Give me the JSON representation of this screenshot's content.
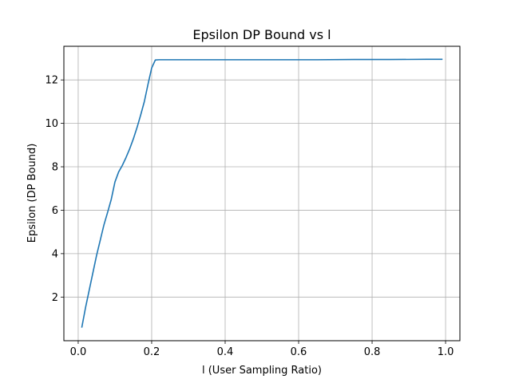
{
  "chart_data": {
    "type": "line",
    "title": "Epsilon DP Bound vs l",
    "xlabel": "l (User Sampling Ratio)",
    "ylabel": "Epsilon (DP Bound)",
    "xlim": [
      -0.039,
      1.039
    ],
    "ylim": [
      -0.01,
      13.55
    ],
    "xticks": [
      0.0,
      0.2,
      0.4,
      0.6,
      0.8,
      1.0
    ],
    "xtick_labels": [
      "0.0",
      "0.2",
      "0.4",
      "0.6",
      "0.8",
      "1.0"
    ],
    "yticks": [
      2,
      4,
      6,
      8,
      10,
      12
    ],
    "ytick_labels": [
      "2",
      "4",
      "6",
      "8",
      "10",
      "12"
    ],
    "grid": true,
    "legend": "none",
    "series": [
      {
        "color": "#1f77b4",
        "x": [
          0.01,
          0.02,
          0.03,
          0.04,
          0.05,
          0.06,
          0.07,
          0.08,
          0.09,
          0.1,
          0.11,
          0.12,
          0.13,
          0.14,
          0.15,
          0.16,
          0.17,
          0.18,
          0.19,
          0.2,
          0.21,
          0.22,
          0.23,
          0.25,
          0.28,
          0.35,
          0.45,
          0.55,
          0.65,
          0.75,
          0.85,
          0.95,
          0.99
        ],
        "y": [
          0.62,
          1.52,
          2.32,
          3.12,
          3.92,
          4.62,
          5.32,
          5.9,
          6.5,
          7.3,
          7.76,
          8.06,
          8.42,
          8.82,
          9.28,
          9.8,
          10.38,
          11.0,
          11.8,
          12.55,
          12.92,
          12.93,
          12.93,
          12.93,
          12.93,
          12.93,
          12.93,
          12.93,
          12.93,
          12.94,
          12.94,
          12.95,
          12.95
        ]
      }
    ]
  }
}
